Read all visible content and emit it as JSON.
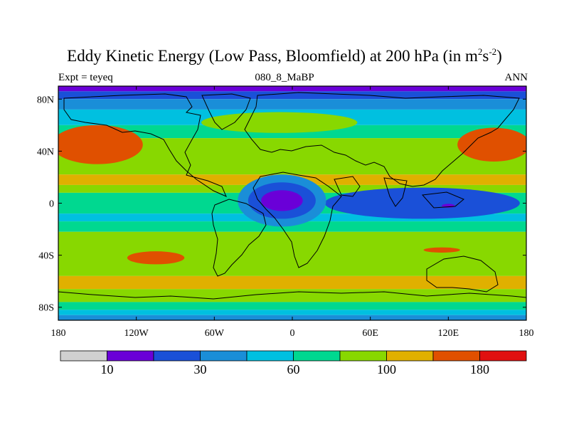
{
  "title": {
    "main": "Eddy Kinetic Energy (Low Pass, Bloomfield) at 200 hPa (in m",
    "sup1": "2",
    "mid": "s",
    "sup2": "-2",
    "close": ")"
  },
  "subtitle_left": "Expt = teyeq",
  "subtitle_center": "080_8_MaBP",
  "subtitle_right": "ANN",
  "map": {
    "lon_range": [
      -180,
      180
    ],
    "lat_range": [
      -90,
      90
    ],
    "lat_ticks": [
      {
        "value": 80,
        "label": "80N"
      },
      {
        "value": 40,
        "label": "40N"
      },
      {
        "value": 0,
        "label": "0"
      },
      {
        "value": -40,
        "label": "40S"
      },
      {
        "value": -80,
        "label": "80S"
      }
    ],
    "lon_ticks": [
      {
        "value": -180,
        "label": "180"
      },
      {
        "value": -120,
        "label": "120W"
      },
      {
        "value": -60,
        "label": "60W"
      },
      {
        "value": 0,
        "label": "0"
      },
      {
        "value": 60,
        "label": "60E"
      },
      {
        "value": 120,
        "label": "120E"
      },
      {
        "value": 180,
        "label": "180"
      }
    ]
  },
  "colorbar": {
    "colors": [
      "#d0d0d0",
      "#6a00d8",
      "#1a50d8",
      "#1a8ed8",
      "#00c0e0",
      "#00d890",
      "#88d800",
      "#e0b000",
      "#e05000",
      "#e01010"
    ],
    "labels": [
      {
        "after_box": 1,
        "text": "10"
      },
      {
        "after_box": 3,
        "text": "30"
      },
      {
        "after_box": 5,
        "text": "60"
      },
      {
        "after_box": 7,
        "text": "100"
      },
      {
        "after_box": 9,
        "text": "180"
      }
    ]
  },
  "field_levels": {
    "band_bounds_lat": [
      90,
      86,
      80,
      72,
      60,
      50,
      22,
      14,
      8,
      -8,
      -14,
      -22,
      -56,
      -66,
      -76,
      -82,
      -86,
      -90
    ],
    "band_color_index": [
      1,
      2,
      3,
      4,
      5,
      6,
      7,
      6,
      5,
      4,
      5,
      6,
      7,
      6,
      5,
      4,
      3,
      2
    ],
    "features": [
      {
        "lon": -150,
        "lat": 45,
        "rx": 35,
        "ry": 15,
        "color_index": 8,
        "kind": "jet-max-nw"
      },
      {
        "lon": 155,
        "lat": 45,
        "rx": 28,
        "ry": 13,
        "color_index": 8,
        "kind": "jet-max-ne"
      },
      {
        "lon": -105,
        "lat": -42,
        "rx": 22,
        "ry": 5,
        "color_index": 8,
        "kind": "jet-max-sw"
      },
      {
        "lon": 115,
        "lat": -36,
        "rx": 14,
        "ry": 2,
        "color_index": 8,
        "kind": "jet-max-se"
      },
      {
        "lon": 100,
        "lat": 0,
        "rx": 75,
        "ry": 12,
        "color_index": 2,
        "kind": "equatorial-min-east"
      },
      {
        "lon": -8,
        "lat": 2,
        "rx": 34,
        "ry": 20,
        "color_index": 3,
        "kind": "equatorial-min-africa-outer"
      },
      {
        "lon": -8,
        "lat": 2,
        "rx": 26,
        "ry": 14,
        "color_index": 2,
        "kind": "equatorial-min-africa"
      },
      {
        "lon": -8,
        "lat": 2,
        "rx": 16,
        "ry": 8,
        "color_index": 1,
        "kind": "equatorial-core"
      },
      {
        "lon": 120,
        "lat": -2,
        "rx": 5,
        "ry": 1.5,
        "color_index": 1,
        "kind": "equatorial-core-east"
      },
      {
        "lon": -10,
        "lat": 62,
        "rx": 60,
        "ry": 8,
        "color_index": 6,
        "kind": "mid-lat-dip-north"
      }
    ]
  }
}
